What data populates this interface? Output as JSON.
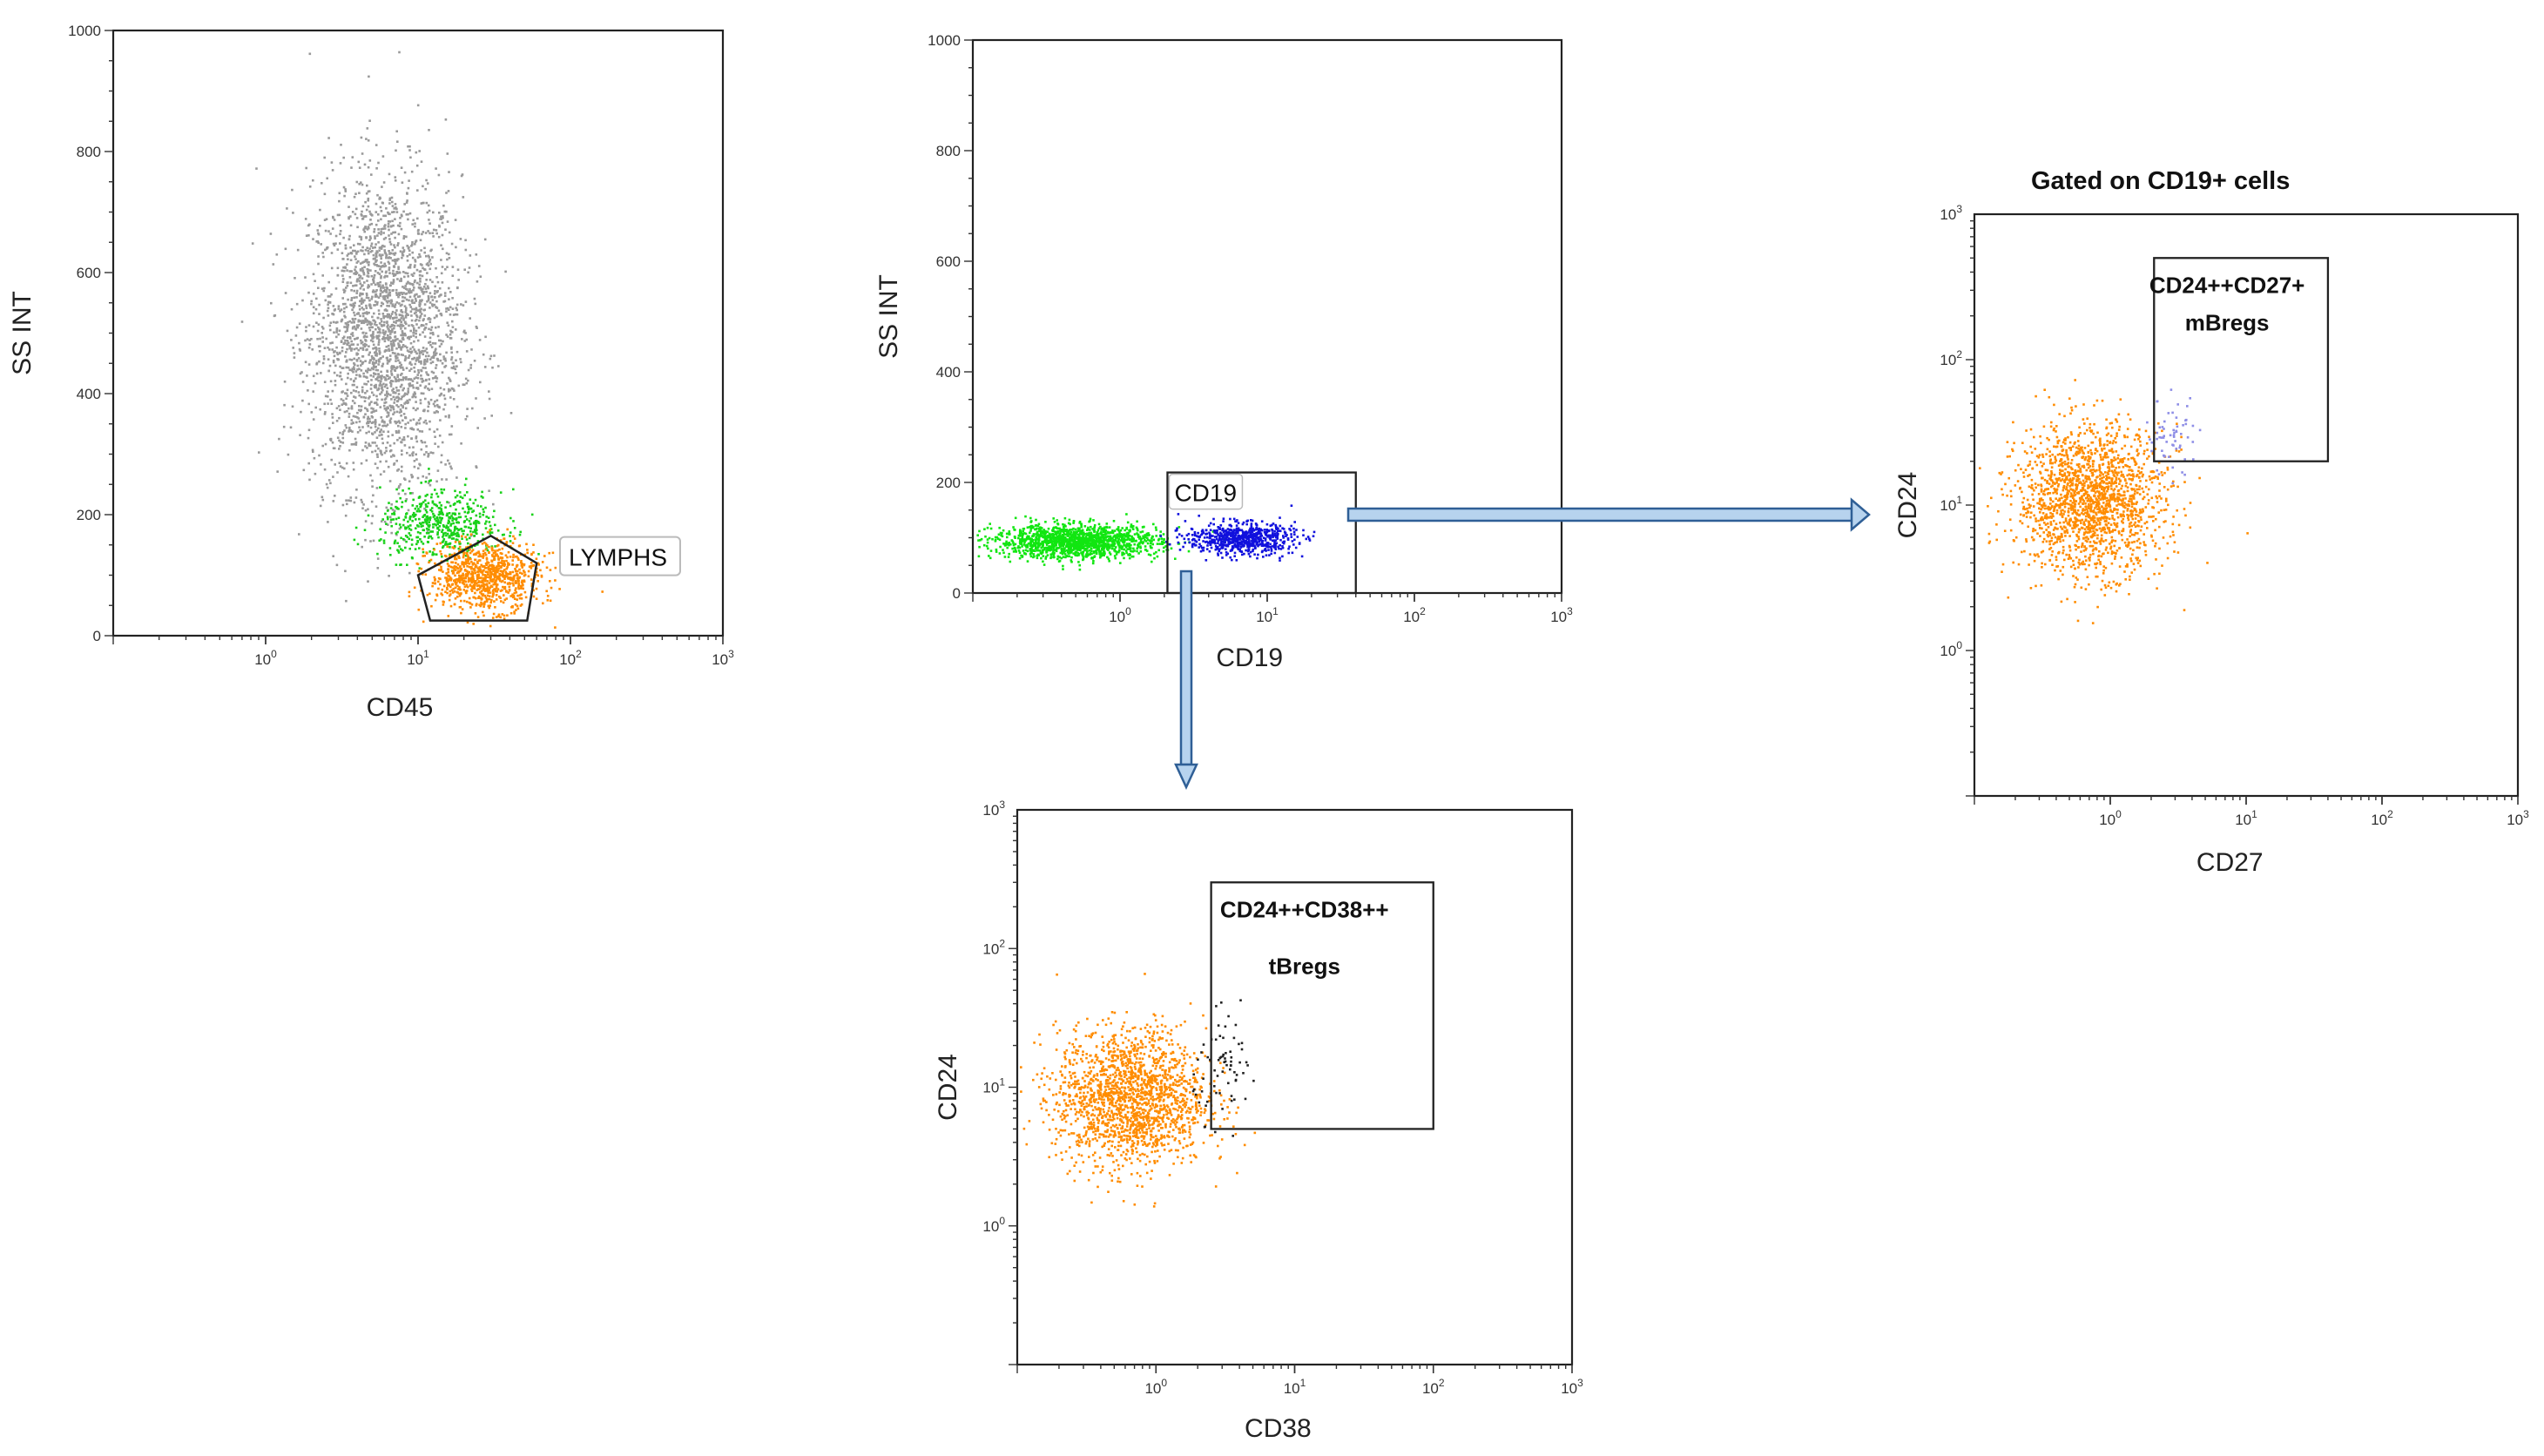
{
  "colors": {
    "granulocytes": "#9a9a9a",
    "monocytes": "#19d119",
    "lymphocytes": "#ff8c00",
    "bcells": "#1111dd",
    "nonb": "#11e611",
    "tbregs": "#222222",
    "mbregs": "#8e8ee6",
    "arrow_fill": "#b7d3ee",
    "arrow_stroke": "#2f5f96"
  },
  "caption_gated": "Gated on CD19+ cells",
  "chart_data": [
    {
      "id": "plot-cd45-ss",
      "type": "scatter",
      "title": "",
      "xlabel": "CD45",
      "ylabel": "SS INT",
      "xscale": "log",
      "xlim": [
        0.1,
        1000
      ],
      "ylim": [
        0,
        1000
      ],
      "xticks": [
        {
          "v": 1,
          "b": "10",
          "e": "0"
        },
        {
          "v": 10,
          "b": "10",
          "e": "1"
        },
        {
          "v": 100,
          "b": "10",
          "e": "2"
        },
        {
          "v": 1000,
          "b": "10",
          "e": "3"
        }
      ],
      "yticks": [
        {
          "v": 0,
          "t": "0"
        },
        {
          "v": 200,
          "t": "200"
        },
        {
          "v": 400,
          "t": "400"
        },
        {
          "v": 600,
          "t": "600"
        },
        {
          "v": 800,
          "t": "800"
        },
        {
          "v": 1000,
          "t": "1000"
        }
      ],
      "populations": [
        {
          "name": "granulocytes",
          "color": "granulocytes",
          "center": [
            6,
            500
          ],
          "spread": [
            0.25,
            130
          ],
          "count": 2600
        },
        {
          "name": "monocytes",
          "color": "monocytes",
          "center": [
            14,
            185
          ],
          "spread": [
            0.2,
            28
          ],
          "count": 500
        },
        {
          "name": "lymphocytes",
          "color": "lymphocytes",
          "center": [
            27,
            100
          ],
          "spread": [
            0.18,
            28
          ],
          "count": 900
        }
      ],
      "gates": [
        {
          "name": "lymphs-gate",
          "label": "LYMPHS",
          "shape": "polygon",
          "points": [
            [
              10,
              100
            ],
            [
              30,
              165
            ],
            [
              60,
              120
            ],
            [
              52,
              25
            ],
            [
              12,
              25
            ]
          ]
        }
      ]
    },
    {
      "id": "plot-cd19-ss",
      "type": "scatter",
      "title": "",
      "xlabel": "CD19",
      "ylabel": "SS INT",
      "xscale": "log",
      "xlim": [
        0.1,
        1000
      ],
      "ylim": [
        0,
        1000
      ],
      "xticks": [
        {
          "v": 1,
          "b": "10",
          "e": "0"
        },
        {
          "v": 10,
          "b": "10",
          "e": "1"
        },
        {
          "v": 100,
          "b": "10",
          "e": "2"
        },
        {
          "v": 1000,
          "b": "10",
          "e": "3"
        }
      ],
      "yticks": [
        {
          "v": 0,
          "t": "0"
        },
        {
          "v": 200,
          "t": "200"
        },
        {
          "v": 400,
          "t": "400"
        },
        {
          "v": 600,
          "t": "600"
        },
        {
          "v": 800,
          "t": "800"
        },
        {
          "v": 1000,
          "t": "1000"
        }
      ],
      "populations": [
        {
          "name": "cd19-negative",
          "color": "nonb",
          "center": [
            0.5,
            95
          ],
          "spread": [
            0.28,
            15
          ],
          "count": 1500
        },
        {
          "name": "cd19-positive",
          "color": "bcells",
          "center": [
            6.5,
            100
          ],
          "spread": [
            0.18,
            14
          ],
          "count": 700
        }
      ],
      "gates": [
        {
          "name": "cd19-gate",
          "label": "CD19",
          "shape": "rect",
          "x": [
            2.1,
            40
          ],
          "y": [
            0,
            218
          ]
        }
      ]
    },
    {
      "id": "plot-cd38-cd24",
      "type": "scatter",
      "title": "",
      "xlabel": "CD38",
      "ylabel": "CD24",
      "xscale": "log",
      "yscale": "log",
      "xlim": [
        0.1,
        1000
      ],
      "ylim": [
        0.1,
        1000
      ],
      "xticks": [
        {
          "v": 1,
          "b": "10",
          "e": "0"
        },
        {
          "v": 10,
          "b": "10",
          "e": "1"
        },
        {
          "v": 100,
          "b": "10",
          "e": "2"
        },
        {
          "v": 1000,
          "b": "10",
          "e": "3"
        }
      ],
      "yticks": [
        {
          "v": 1,
          "b": "10",
          "e": "0"
        },
        {
          "v": 10,
          "b": "10",
          "e": "1"
        },
        {
          "v": 100,
          "b": "10",
          "e": "2"
        },
        {
          "v": 1000,
          "b": "10",
          "e": "3"
        }
      ],
      "populations": [
        {
          "name": "b-cells",
          "color": "lymphocytes",
          "center": [
            0.65,
            8.5
          ],
          "spread": [
            0.27,
            0.25
          ],
          "count": 1800
        },
        {
          "name": "tbregs-events",
          "color": "tbregs",
          "center": [
            3.2,
            14
          ],
          "spread": [
            0.12,
            0.18
          ],
          "count": 70
        }
      ],
      "gates": [
        {
          "name": "tbregs-gate",
          "label": [
            "CD24++CD38++",
            "tBregs"
          ],
          "shape": "rect",
          "x": [
            2.5,
            100
          ],
          "y": [
            5,
            300
          ]
        }
      ]
    },
    {
      "id": "plot-cd27-cd24",
      "type": "scatter",
      "title": "",
      "xlabel": "CD27",
      "ylabel": "CD24",
      "xscale": "log",
      "yscale": "log",
      "xlim": [
        0.1,
        1000
      ],
      "ylim": [
        0.1,
        1000
      ],
      "xticks": [
        {
          "v": 1,
          "b": "10",
          "e": "0"
        },
        {
          "v": 10,
          "b": "10",
          "e": "1"
        },
        {
          "v": 100,
          "b": "10",
          "e": "2"
        },
        {
          "v": 1000,
          "b": "10",
          "e": "3"
        }
      ],
      "yticks": [
        {
          "v": 1,
          "b": "10",
          "e": "0"
        },
        {
          "v": 10,
          "b": "10",
          "e": "1"
        },
        {
          "v": 100,
          "b": "10",
          "e": "2"
        },
        {
          "v": 1000,
          "b": "10",
          "e": "3"
        }
      ],
      "populations": [
        {
          "name": "b-cells",
          "color": "lymphocytes",
          "center": [
            0.7,
            11
          ],
          "spread": [
            0.27,
            0.25
          ],
          "count": 1800
        },
        {
          "name": "mbregs-events",
          "color": "mbregs",
          "center": [
            2.8,
            30
          ],
          "spread": [
            0.1,
            0.13
          ],
          "count": 60
        }
      ],
      "gates": [
        {
          "name": "mbregs-gate",
          "label": [
            "CD24++CD27+",
            "mBregs"
          ],
          "shape": "rect",
          "x": [
            2.1,
            40
          ],
          "y": [
            20,
            500
          ]
        }
      ]
    }
  ]
}
